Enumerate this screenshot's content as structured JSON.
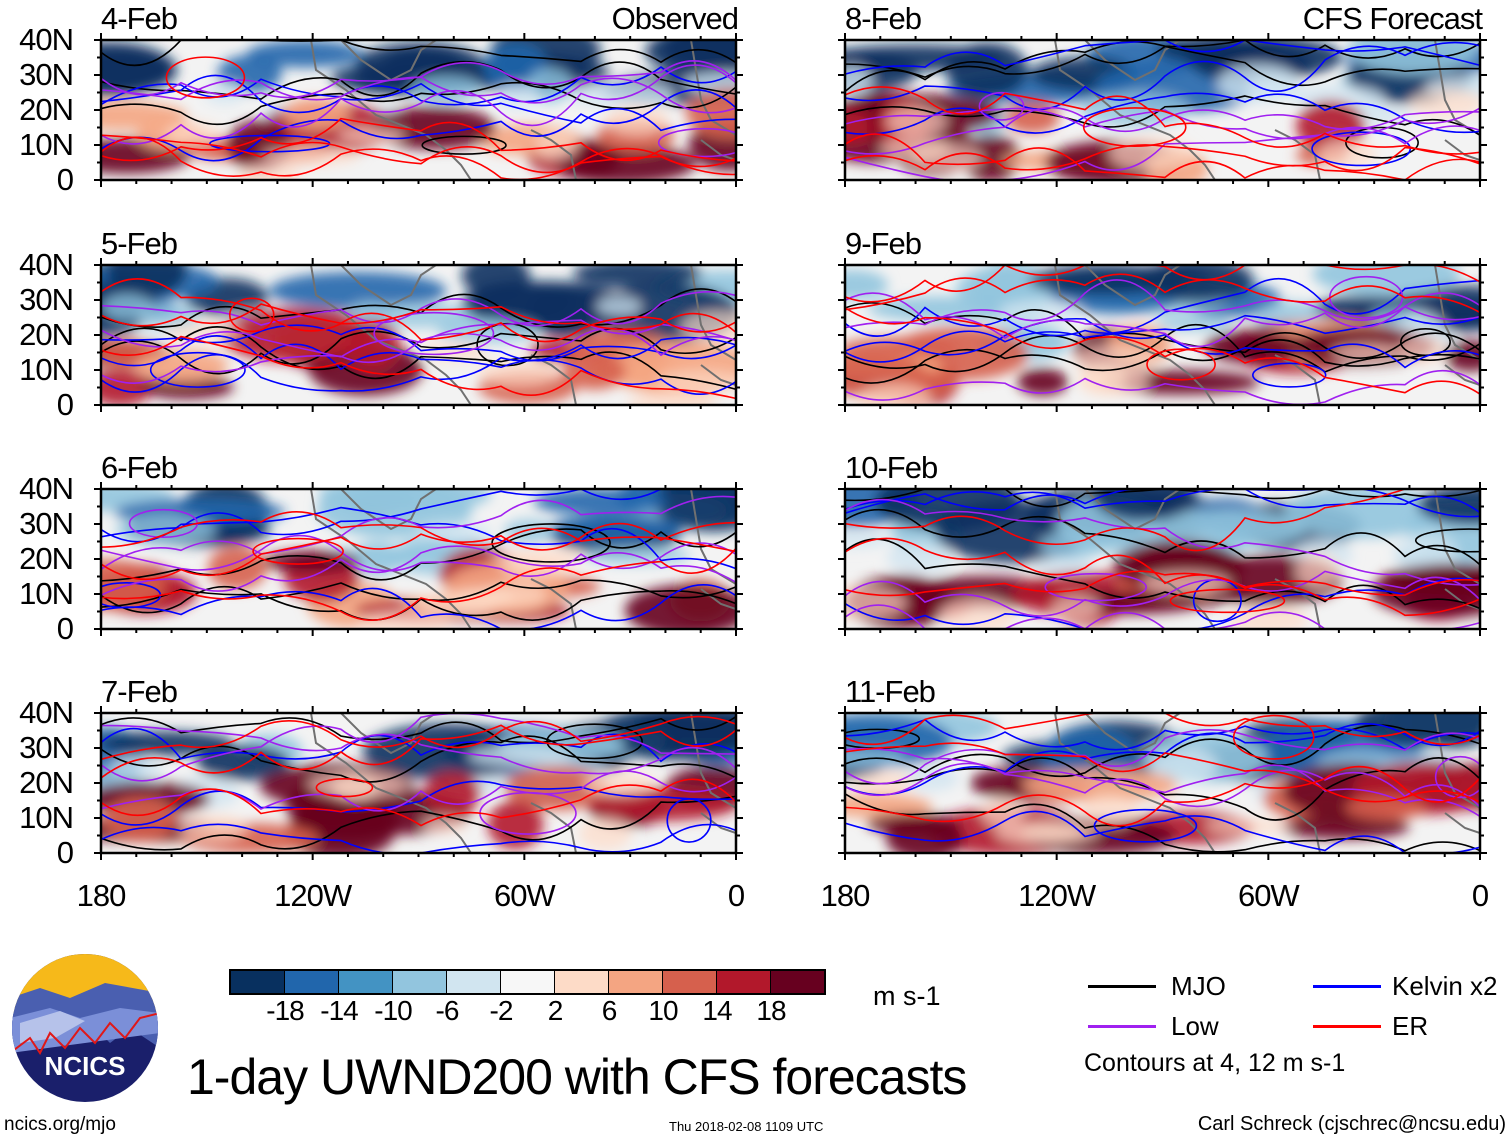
{
  "panels": [
    {
      "date": "4-Feb",
      "subtitle": "Observed",
      "column": "observed"
    },
    {
      "date": "5-Feb",
      "subtitle": "",
      "column": "observed"
    },
    {
      "date": "6-Feb",
      "subtitle": "",
      "column": "observed"
    },
    {
      "date": "7-Feb",
      "subtitle": "",
      "column": "observed"
    },
    {
      "date": "8-Feb",
      "subtitle": "CFS Forecast",
      "column": "forecast"
    },
    {
      "date": "9-Feb",
      "subtitle": "",
      "column": "forecast"
    },
    {
      "date": "10-Feb",
      "subtitle": "",
      "column": "forecast"
    },
    {
      "date": "11-Feb",
      "subtitle": "",
      "column": "forecast"
    }
  ],
  "y_ticks": [
    "40N",
    "30N",
    "20N",
    "10N",
    "0"
  ],
  "x_ticks": [
    "180",
    "120W",
    "60W",
    "0"
  ],
  "colorbar": {
    "labels": [
      "-18",
      "-14",
      "-10",
      "-6",
      "-2",
      "2",
      "6",
      "10",
      "14",
      "18"
    ],
    "colors": [
      "#08305f",
      "#2166ac",
      "#4393c3",
      "#92c5de",
      "#d1e5f0",
      "#f7f7f7",
      "#fddbc7",
      "#f4a582",
      "#d6604d",
      "#b2182b",
      "#67001f"
    ],
    "units": "m s-1"
  },
  "legend": {
    "items": [
      {
        "label": "MJO",
        "color": "#000000"
      },
      {
        "label": "Kelvin x2",
        "color": "#0000ff"
      },
      {
        "label": "Low",
        "color": "#a020f0"
      },
      {
        "label": "ER",
        "color": "#ff0000"
      }
    ],
    "contours_note": "Contours at 4, 12 m s-1"
  },
  "logo_text": "NCICS",
  "title": "1-day UWND200 with CFS forecasts",
  "footer": {
    "left": "ncics.org/mjo",
    "center": "Thu 2018-02-08 1109 UTC",
    "right": "Carl Schreck (cjschrec@ncsu.edu)"
  }
}
